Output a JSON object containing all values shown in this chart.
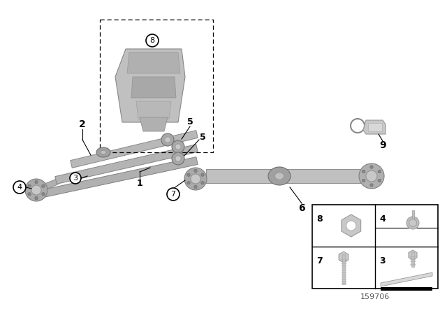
{
  "bg_color": "#ffffff",
  "diagram_number": "159706",
  "shaft_color": "#b0b0b0",
  "shaft_edge": "#888888",
  "flange_color": "#aaaaaa",
  "table_border": "#333333",
  "label_color": "#000000"
}
